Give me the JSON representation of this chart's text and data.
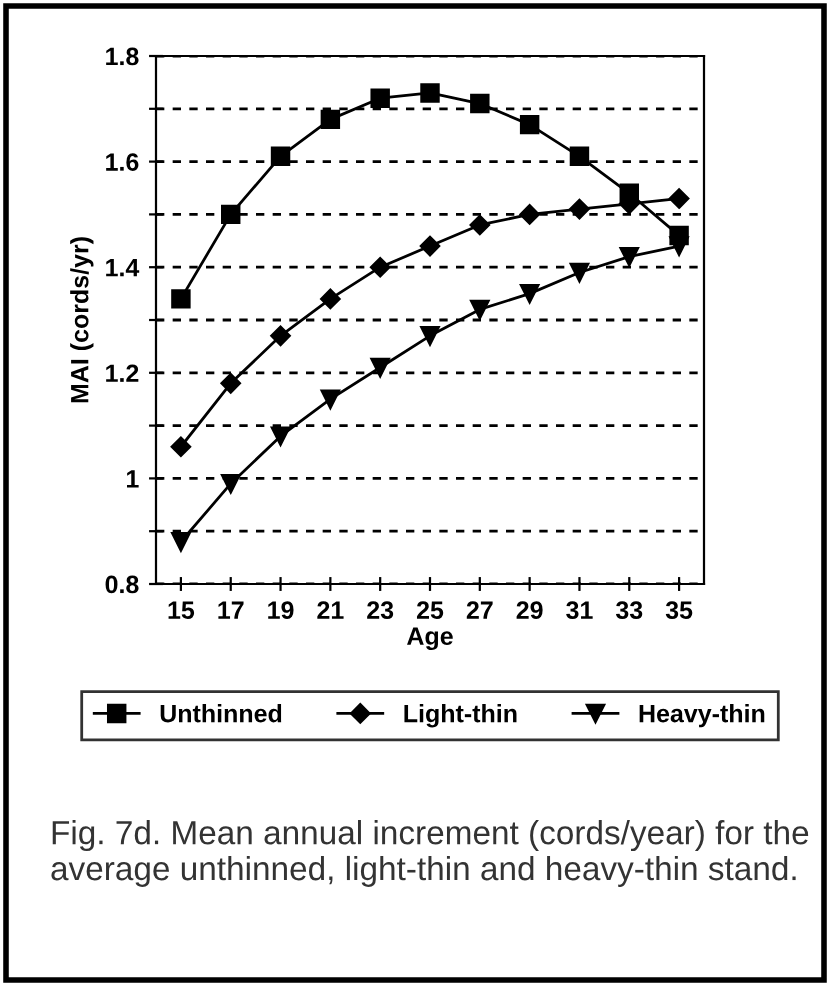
{
  "chart_data": {
    "type": "line",
    "xlabel": "Age",
    "ylabel": "MAI (cords/yr)",
    "x": [
      15,
      17,
      19,
      21,
      23,
      25,
      27,
      29,
      31,
      33,
      35
    ],
    "series": [
      {
        "name": "Unthinned",
        "color": "#000000",
        "marker": "square",
        "values": [
          1.34,
          1.5,
          1.61,
          1.68,
          1.72,
          1.73,
          1.71,
          1.67,
          1.61,
          1.54,
          1.46
        ]
      },
      {
        "name": "Light-thin",
        "color": "#000000",
        "marker": "diamond",
        "values": [
          1.06,
          1.18,
          1.27,
          1.34,
          1.4,
          1.44,
          1.48,
          1.5,
          1.51,
          1.52,
          1.53
        ]
      },
      {
        "name": "Heavy-thin",
        "color": "#000000",
        "marker": "triangle",
        "values": [
          0.88,
          0.99,
          1.08,
          1.15,
          1.21,
          1.27,
          1.32,
          1.35,
          1.39,
          1.42,
          1.44
        ]
      }
    ],
    "xlim": [
      14,
      36
    ],
    "xticks": [
      15,
      17,
      19,
      21,
      23,
      25,
      27,
      29,
      31,
      33,
      35
    ],
    "ylim": [
      0.8,
      1.8
    ],
    "yticks": [
      0.8,
      {
        "value": 0.9,
        "label": null
      },
      1,
      {
        "value": 1.1,
        "label": null
      },
      1.2,
      {
        "value": 1.3,
        "label": null
      },
      1.4,
      {
        "value": 1.5,
        "label": null
      },
      1.6,
      {
        "value": 1.7,
        "label": null
      },
      1.8
    ],
    "grid": "y",
    "legend": "bottom",
    "line_style": "solid",
    "annotations": [
      "Fig. 7d. Mean annual increment (cords/year) for the average unthinned, light-thin and heavy-thin stand."
    ]
  }
}
